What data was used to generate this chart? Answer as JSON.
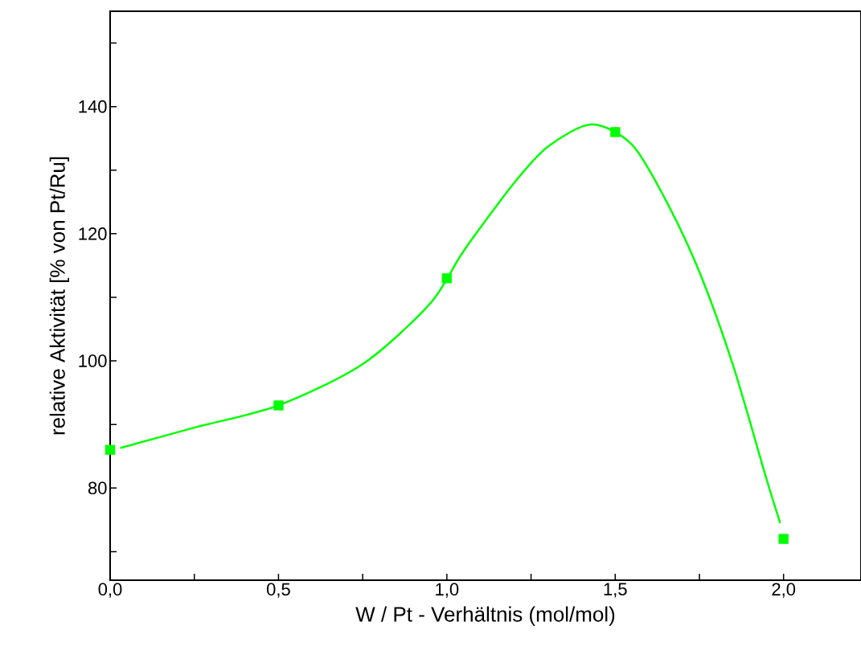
{
  "chart_data": {
    "type": "scatter",
    "xlabel": "W / Pt - Verhältnis (mol/mol)",
    "ylabel": "relative Aktivität [% von Pt/Ru]",
    "xlim": [
      0,
      2.23
    ],
    "ylim": [
      65.5,
      155
    ],
    "xticks": [
      {
        "value": 0,
        "label": "0,0"
      },
      {
        "value": 0.25,
        "label": null
      },
      {
        "value": 0.5,
        "label": "0,5"
      },
      {
        "value": 0.75,
        "label": null
      },
      {
        "value": 1,
        "label": "1,0"
      },
      {
        "value": 1.25,
        "label": null
      },
      {
        "value": 1.5,
        "label": "1,5"
      },
      {
        "value": 1.75,
        "label": null
      },
      {
        "value": 2,
        "label": "2,0"
      }
    ],
    "yticks": [
      {
        "value": 70,
        "label": null
      },
      80,
      {
        "value": 90,
        "label": null
      },
      100,
      {
        "value": 110,
        "label": null
      },
      120,
      {
        "value": 130,
        "label": null
      },
      140,
      {
        "value": 150,
        "label": null
      }
    ],
    "grid": false,
    "series": [
      {
        "type": "line",
        "color": "#00ff00",
        "marker": "none",
        "line_style": "solid",
        "x": [
          0.03,
          0.25,
          0.5,
          0.75,
          0.95,
          1.05,
          1.2,
          1.3,
          1.43,
          1.55,
          1.65,
          1.75,
          1.85,
          1.95,
          1.99
        ],
        "values": [
          86.3,
          89.5,
          93,
          99.5,
          109,
          117.3,
          128,
          133.7,
          137.2,
          134,
          125.3,
          114,
          99.3,
          81.3,
          74.5
        ]
      },
      {
        "color": "#00ff00",
        "marker": "square",
        "x": [
          0,
          0.5,
          1,
          1.5,
          2
        ],
        "values": [
          86,
          93,
          113,
          136,
          72
        ]
      }
    ]
  }
}
